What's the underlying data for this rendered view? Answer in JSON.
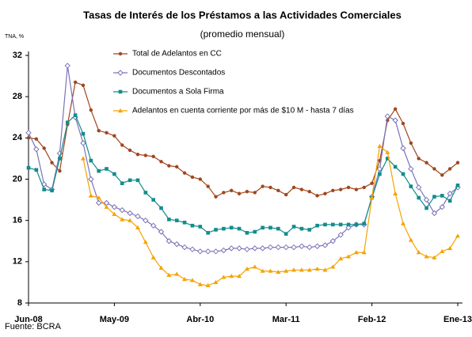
{
  "chart_data": {
    "type": "line",
    "title": "Tasas de Interés de los Préstamos a las Actividades Comerciales",
    "subtitle": "(promedio mensual)",
    "y_label": "TNA, %",
    "source": "Fuente: BCRA",
    "categories": [
      "Jun-08",
      null,
      null,
      null,
      null,
      null,
      null,
      null,
      null,
      null,
      null,
      "May-09",
      null,
      null,
      null,
      null,
      null,
      null,
      null,
      null,
      null,
      null,
      "Abr-10",
      null,
      null,
      null,
      null,
      null,
      null,
      null,
      null,
      null,
      null,
      "Mar-11",
      null,
      null,
      null,
      null,
      null,
      null,
      null,
      null,
      null,
      null,
      "Feb-12",
      null,
      null,
      null,
      null,
      null,
      null,
      null,
      null,
      null,
      null,
      "Ene-13"
    ],
    "ylim": [
      8,
      32
    ],
    "yticks": [
      8,
      12,
      16,
      20,
      24,
      28,
      32
    ],
    "grid": false,
    "legend": "top-left",
    "series": [
      {
        "name": "Total de Adelantos en CC",
        "color": "#a0461e",
        "marker": "circle",
        "values": [
          24.0,
          23.9,
          23.0,
          21.6,
          20.8,
          25.3,
          29.4,
          29.1,
          26.7,
          24.7,
          24.5,
          24.2,
          23.3,
          22.8,
          22.4,
          22.3,
          22.2,
          21.7,
          21.3,
          21.2,
          20.6,
          20.2,
          20.0,
          19.3,
          18.3,
          18.7,
          18.9,
          18.6,
          18.8,
          18.7,
          19.3,
          19.2,
          18.9,
          18.5,
          19.2,
          19.0,
          18.8,
          18.4,
          18.6,
          18.9,
          19.0,
          19.2,
          19.0,
          19.2,
          19.6,
          21.8,
          25.7,
          26.8,
          25.4,
          23.5,
          22.0,
          21.6,
          21.0,
          20.4,
          21.0,
          21.6
        ]
      },
      {
        "name": "Documentos Descontados",
        "color": "#7b74b8",
        "marker": "diamond",
        "values": [
          24.5,
          22.9,
          19.5,
          19.0,
          22.5,
          31.0,
          26.0,
          23.5,
          20.0,
          17.7,
          17.7,
          17.3,
          17.0,
          16.7,
          16.4,
          16.0,
          15.5,
          14.9,
          14.0,
          13.7,
          13.4,
          13.2,
          13.0,
          13.0,
          13.0,
          13.1,
          13.3,
          13.3,
          13.2,
          13.3,
          13.3,
          13.4,
          13.4,
          13.4,
          13.4,
          13.5,
          13.4,
          13.5,
          13.6,
          14.0,
          14.6,
          15.3,
          15.6,
          15.6,
          18.3,
          21.0,
          26.1,
          25.7,
          23.0,
          21.0,
          19.2,
          18.0,
          16.7,
          17.3,
          18.6,
          19.2
        ]
      },
      {
        "name": "Documentos a Sola Firma",
        "color": "#138c8c",
        "marker": "square",
        "values": [
          21.1,
          20.9,
          19.0,
          18.9,
          22.0,
          25.5,
          26.2,
          24.4,
          21.8,
          20.8,
          21.0,
          20.5,
          19.6,
          19.9,
          19.9,
          18.7,
          18.0,
          17.2,
          16.1,
          16.0,
          15.8,
          15.5,
          15.4,
          14.8,
          15.1,
          15.2,
          15.3,
          15.2,
          14.8,
          14.9,
          15.3,
          15.3,
          15.2,
          14.7,
          15.4,
          15.2,
          15.1,
          15.5,
          15.6,
          15.6,
          15.6,
          15.6,
          15.6,
          15.7,
          18.2,
          20.5,
          22.0,
          21.2,
          20.5,
          19.3,
          18.2,
          17.2,
          18.3,
          18.4,
          17.9,
          19.4
        ]
      },
      {
        "name": "Adelantos en cuenta corriente por más de $10 M - hasta 7 días",
        "color": "#f5a300",
        "marker": "triangle",
        "values": [
          null,
          null,
          null,
          null,
          null,
          null,
          null,
          22.0,
          18.4,
          18.2,
          17.3,
          16.6,
          16.1,
          16.0,
          15.3,
          13.9,
          12.4,
          11.4,
          10.7,
          10.8,
          10.3,
          10.2,
          9.8,
          9.7,
          10.0,
          10.5,
          10.6,
          10.6,
          11.3,
          11.5,
          11.1,
          11.1,
          11.0,
          11.1,
          11.2,
          11.2,
          11.2,
          11.3,
          11.2,
          11.5,
          12.3,
          12.5,
          12.9,
          12.9,
          18.2,
          23.2,
          22.6,
          18.6,
          15.7,
          14.1,
          12.9,
          12.5,
          12.4,
          13.0,
          13.3,
          14.5
        ]
      }
    ]
  }
}
